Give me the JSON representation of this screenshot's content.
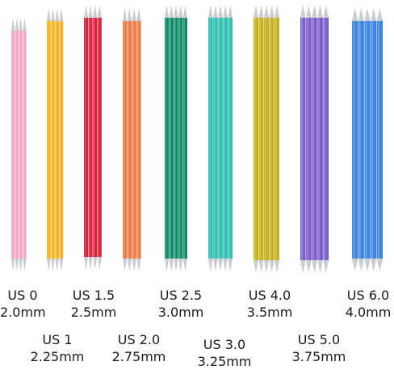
{
  "image_description_colors": {
    "tip": "#c9ccd0",
    "background": "#ffffff"
  },
  "sets": [
    {
      "us_size": "US 0",
      "metric": "2.0mm",
      "color": "#f3a3c4",
      "count": 4,
      "text": ""
    },
    {
      "us_size": "US 1",
      "metric": "2.25mm",
      "color": "#f5b322",
      "count": 4,
      "text": "2.25mm · US1"
    },
    {
      "us_size": "US 1.5",
      "metric": "2.5mm",
      "color": "#de1f3a",
      "count": 4,
      "text": "2.5mm · US1.5"
    },
    {
      "us_size": "US 2.0",
      "metric": "2.75mm",
      "color": "#f07a44",
      "count": 4,
      "text": "2.75mm · US2"
    },
    {
      "us_size": "US 2.5",
      "metric": "3.0mm",
      "color": "#0f8a6a",
      "count": 5,
      "text": "3.0mm · US2.5"
    },
    {
      "us_size": "US 3.0",
      "metric": "3.25mm",
      "color": "#2fbfb2",
      "count": 5,
      "text": "3.25mm · US3"
    },
    {
      "us_size": "US 4.0",
      "metric": "3.5mm",
      "color": "#c8b11e",
      "count": 5,
      "text": "3.5mm · US4"
    },
    {
      "us_size": "US 5.0",
      "metric": "3.75mm",
      "color": "#7d5ec9",
      "count": 5,
      "text": "3.75mm · US5"
    },
    {
      "us_size": "US 6.0",
      "metric": "4.0mm",
      "color": "#3c86e0",
      "count": 5,
      "text": "4.0mm · US6"
    }
  ]
}
